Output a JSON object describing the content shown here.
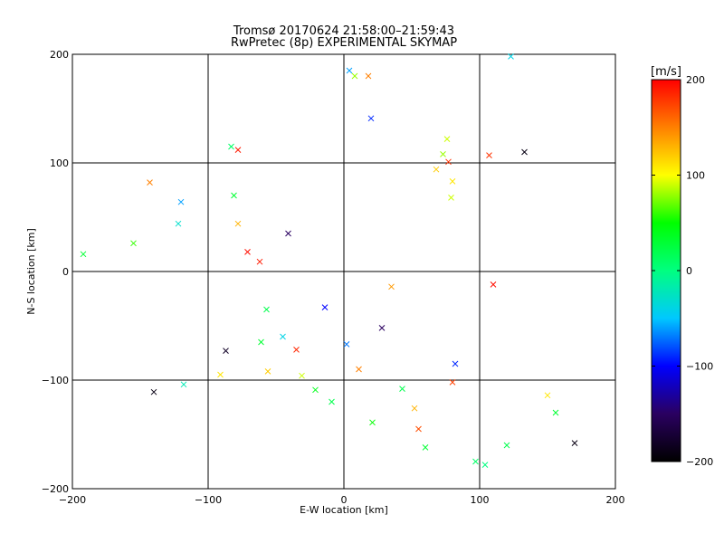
{
  "chart_data": {
    "type": "scatter",
    "title": "Tromsø 20170624 21:58:00–21:59:43",
    "subtitle": "RwPretec (8p) EXPERIMENTAL SKYMAP",
    "xlabel": "E-W location [km]",
    "ylabel": "N-S location [km]",
    "xlim": [
      -200,
      200
    ],
    "ylim": [
      -200,
      200
    ],
    "xticks": [
      "−200",
      "−100",
      "0",
      "100",
      "200"
    ],
    "yticks": [
      "−200",
      "−100",
      "0",
      "100",
      "200"
    ],
    "grid": true,
    "colorbar": {
      "label": "[m/s]",
      "range": [
        -200,
        200
      ],
      "ticks": [
        "−200",
        "−100",
        "0",
        "100",
        "200"
      ],
      "colormap": [
        "#000000",
        "#2a0060",
        "#0000ff",
        "#00c8ff",
        "#00ff80",
        "#00ff00",
        "#ffff00",
        "#ff8000",
        "#ff0000"
      ]
    },
    "series": [
      {
        "marker": "x",
        "points": [
          [
            -192,
            16,
            30
          ],
          [
            -155,
            26,
            60
          ],
          [
            -143,
            82,
            150
          ],
          [
            -140,
            -111,
            -190
          ],
          [
            -122,
            44,
            -30
          ],
          [
            -120,
            64,
            -60
          ],
          [
            -118,
            -104,
            -20
          ],
          [
            -83,
            115,
            10
          ],
          [
            -78,
            112,
            190
          ],
          [
            -81,
            70,
            30
          ],
          [
            -78,
            44,
            130
          ],
          [
            -71,
            18,
            195
          ],
          [
            -87,
            -73,
            -180
          ],
          [
            -91,
            -95,
            110
          ],
          [
            -61,
            -65,
            30
          ],
          [
            -56,
            -92,
            120
          ],
          [
            -45,
            -60,
            -40
          ],
          [
            -35,
            -72,
            185
          ],
          [
            -31,
            -96,
            90
          ],
          [
            -21,
            -109,
            40
          ],
          [
            -9,
            -120,
            20
          ],
          [
            4,
            185,
            -60
          ],
          [
            8,
            180,
            80
          ],
          [
            18,
            180,
            150
          ],
          [
            20,
            141,
            -90
          ],
          [
            21,
            -139,
            50
          ],
          [
            43,
            -108,
            20
          ],
          [
            52,
            -126,
            130
          ],
          [
            55,
            -145,
            170
          ],
          [
            60,
            -162,
            30
          ],
          [
            73,
            108,
            80
          ],
          [
            76,
            122,
            90
          ],
          [
            77,
            101,
            180
          ],
          [
            80,
            83,
            110
          ],
          [
            79,
            68,
            90
          ],
          [
            68,
            94,
            120
          ],
          [
            80,
            -102,
            175
          ],
          [
            82,
            -85,
            -90
          ],
          [
            97,
            -175,
            10
          ],
          [
            104,
            -178,
            0
          ],
          [
            110,
            -12,
            195
          ],
          [
            107,
            107,
            180
          ],
          [
            120,
            -160,
            20
          ],
          [
            123,
            198,
            -40
          ],
          [
            133,
            110,
            -190
          ],
          [
            150,
            -114,
            110
          ],
          [
            156,
            -130,
            30
          ],
          [
            170,
            -158,
            -190
          ],
          [
            -57,
            -35,
            20
          ],
          [
            -62,
            9,
            190
          ],
          [
            -41,
            35,
            -150
          ],
          [
            -14,
            -33,
            -100
          ],
          [
            2,
            -67,
            -70
          ],
          [
            35,
            -14,
            140
          ],
          [
            28,
            -52,
            -150
          ],
          [
            11,
            -90,
            150
          ]
        ]
      }
    ]
  }
}
